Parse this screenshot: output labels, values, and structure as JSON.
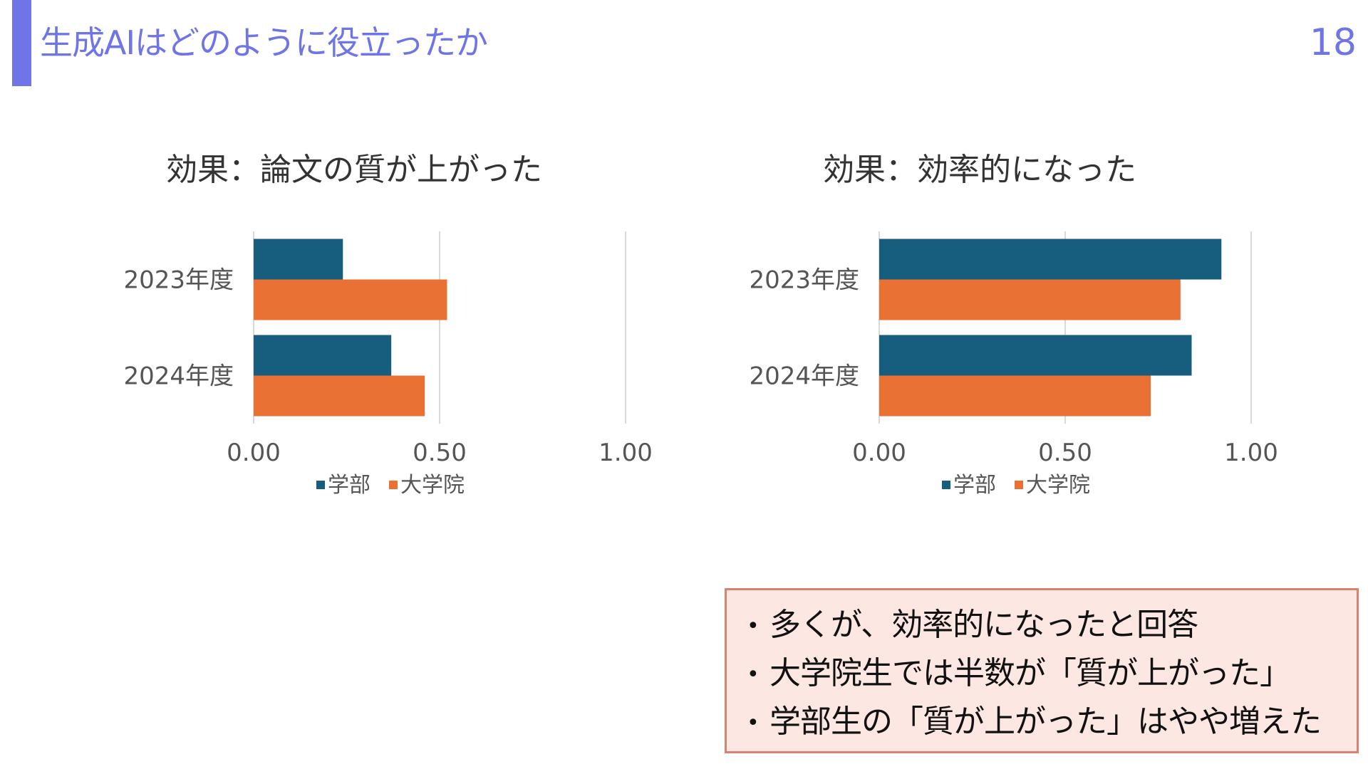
{
  "slide": {
    "title": "生成AIはどのように役立ったか",
    "page_number": "18"
  },
  "colors": {
    "accent": "#6f75e6",
    "series_undergrad": "#175e7e",
    "series_grad": "#e87133",
    "note_bg": "#fce7e3",
    "note_border": "#d8836d"
  },
  "chart_data": [
    {
      "type": "bar",
      "orientation": "horizontal",
      "title": "効果：論文の質が上がった",
      "categories": [
        "2023年度",
        "2024年度"
      ],
      "series": [
        {
          "name": "学部",
          "values": [
            0.24,
            0.37
          ]
        },
        {
          "name": "大学院",
          "values": [
            0.52,
            0.46
          ]
        }
      ],
      "xlim": [
        0,
        1.0
      ],
      "x_ticks": [
        "0.00",
        "0.50",
        "1.00"
      ],
      "grid": true,
      "legend": "bottom"
    },
    {
      "type": "bar",
      "orientation": "horizontal",
      "title": "効果：効率的になった",
      "categories": [
        "2023年度",
        "2024年度"
      ],
      "series": [
        {
          "name": "学部",
          "values": [
            0.92,
            0.84
          ]
        },
        {
          "name": "大学院",
          "values": [
            0.81,
            0.73
          ]
        }
      ],
      "xlim": [
        0,
        1.0
      ],
      "x_ticks": [
        "0.00",
        "0.50",
        "1.00"
      ],
      "grid": true,
      "legend": "bottom"
    }
  ],
  "notes": [
    "多くが、効率的になったと回答",
    "大学院生では半数が「質が上がった」",
    "学部生の「質が上がった」はやや増えた"
  ],
  "bullet_glyph": "•"
}
